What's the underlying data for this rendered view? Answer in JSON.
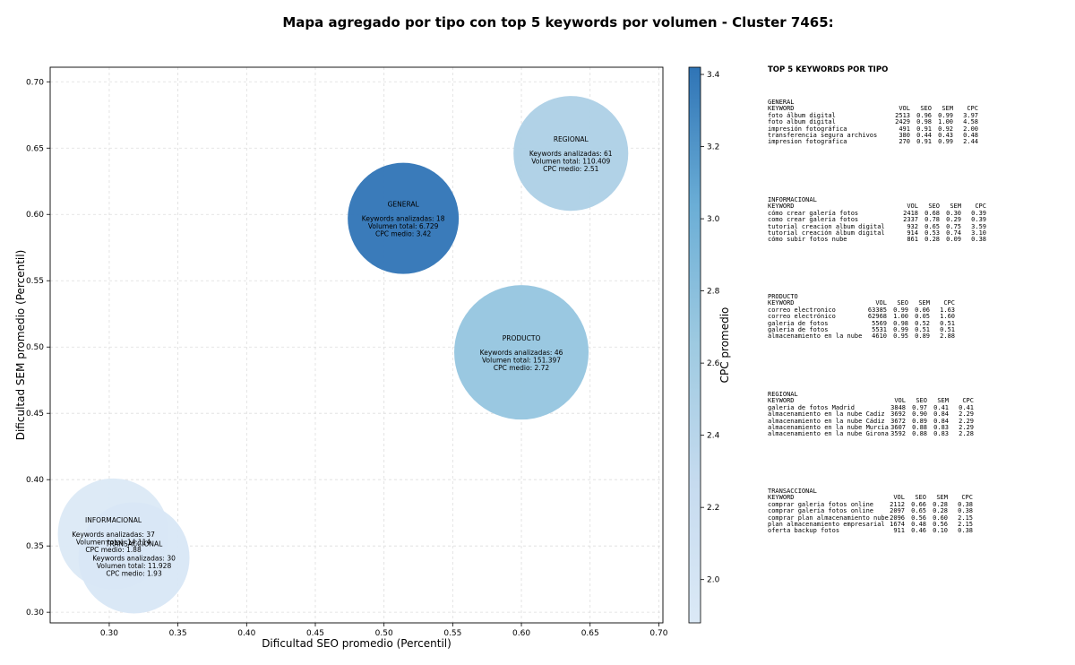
{
  "title": "Mapa agregado por tipo con top 5 keywords por volumen - Cluster 7465:",
  "chart_data": {
    "type": "scatter",
    "xlabel": "Dificultad SEO promedio (Percentil)",
    "ylabel": "Dificultad SEM promedio (Percentil)",
    "xlim": [
      0.257,
      0.703
    ],
    "ylim": [
      0.292,
      0.711
    ],
    "xticks": [
      "0.30",
      "0.35",
      "0.40",
      "0.45",
      "0.50",
      "0.55",
      "0.60",
      "0.65",
      "0.70"
    ],
    "yticks": [
      "0.30",
      "0.35",
      "0.40",
      "0.45",
      "0.50",
      "0.55",
      "0.60",
      "0.65",
      "0.70"
    ],
    "grid": true,
    "colorbar": {
      "label": "CPC promedio",
      "range": [
        1.88,
        3.42
      ],
      "ticks": [
        "2.0",
        "2.2",
        "2.4",
        "2.6",
        "2.8",
        "3.0",
        "3.2",
        "3.4"
      ],
      "colormap": "Blues"
    },
    "points": [
      {
        "name": "GENERAL",
        "x": 0.514,
        "y": 0.597,
        "keywords": 18,
        "volume": 6729,
        "cpc": 3.42,
        "lines": [
          "Keywords analizadas: 18",
          "Volumen total: 6.729",
          "CPC medio: 3.42"
        ]
      },
      {
        "name": "REGIONAL",
        "x": 0.636,
        "y": 0.646,
        "keywords": 61,
        "volume": 110409,
        "cpc": 2.51,
        "lines": [
          "Keywords analizadas: 61",
          "Volumen total: 110.409",
          "CPC medio: 2.51"
        ]
      },
      {
        "name": "PRODUCTO",
        "x": 0.6,
        "y": 0.496,
        "keywords": 46,
        "volume": 151397,
        "cpc": 2.72,
        "lines": [
          "Keywords analizadas: 46",
          "Volumen total: 151.397",
          "CPC medio: 2.72"
        ]
      },
      {
        "name": "INFORMACIONAL",
        "x": 0.303,
        "y": 0.359,
        "keywords": 37,
        "volume": 14114,
        "cpc": 1.88,
        "lines": [
          "Keywords analizadas: 37",
          "Volumen total: 14.114",
          "CPC medio: 1.88"
        ]
      },
      {
        "name": "TRANSACCIONAL",
        "x": 0.318,
        "y": 0.341,
        "keywords": 30,
        "volume": 11928,
        "cpc": 1.93,
        "lines": [
          "Keywords analizadas: 30",
          "Volumen total: 11.928",
          "CPC medio: 1.93"
        ]
      }
    ]
  },
  "side_panel": {
    "title": "TOP 5 KEYWORDS POR TIPO",
    "groups": [
      {
        "name": "GENERAL",
        "header": [
          "KEYWORD",
          "VOL",
          "SEO",
          "SEM",
          "CPC"
        ],
        "rows": [
          [
            "foto álbum digital",
            "2513",
            "0.96",
            "0.99",
            "3.97"
          ],
          [
            "foto album digital",
            "2429",
            "0.98",
            "1.00",
            "4.58"
          ],
          [
            "impresión fotográfica",
            "491",
            "0.91",
            "0.92",
            "2.00"
          ],
          [
            "transferencia segura archivos",
            "380",
            "0.44",
            "0.43",
            "0.48"
          ],
          [
            "impresion fotografica",
            "270",
            "0.91",
            "0.99",
            "2.44"
          ]
        ]
      },
      {
        "name": "INFORMACIONAL",
        "header": [
          "KEYWORD",
          "VOL",
          "SEO",
          "SEM",
          "CPC"
        ],
        "rows": [
          [
            "cómo crear galería fotos",
            "2418",
            "0.68",
            "0.30",
            "0.39"
          ],
          [
            "como crear galeria fotos",
            "2337",
            "0.78",
            "0.29",
            "0.39"
          ],
          [
            "tutorial creacion album digital",
            "932",
            "0.65",
            "0.75",
            "3.59"
          ],
          [
            "tutorial creación álbum digital",
            "914",
            "0.53",
            "0.74",
            "3.10"
          ],
          [
            "cómo subir fotos nube",
            "861",
            "0.28",
            "0.09",
            "0.38"
          ]
        ]
      },
      {
        "name": "PRODUCTO",
        "header": [
          "KEYWORD",
          "VOL",
          "SEO",
          "SEM",
          "CPC"
        ],
        "rows": [
          [
            "correo electronico",
            "63385",
            "0.99",
            "0.06",
            "1.63"
          ],
          [
            "correo electrónico",
            "62968",
            "1.00",
            "0.05",
            "1.60"
          ],
          [
            "galeria de fotos",
            "5569",
            "0.98",
            "0.52",
            "0.51"
          ],
          [
            "galería de fotos",
            "5531",
            "0.99",
            "0.51",
            "0.51"
          ],
          [
            "almacenamiento en la nube",
            "4610",
            "0.95",
            "0.89",
            "2.88"
          ]
        ]
      },
      {
        "name": "REGIONAL",
        "header": [
          "KEYWORD",
          "VOL",
          "SEO",
          "SEM",
          "CPC"
        ],
        "rows": [
          [
            "galeria de fotos Madrid",
            "3848",
            "0.97",
            "0.41",
            "0.41"
          ],
          [
            "almacenamiento en la nube Cadiz",
            "3692",
            "0.90",
            "0.84",
            "2.29"
          ],
          [
            "almacenamiento en la nube Cádiz",
            "3672",
            "0.89",
            "0.84",
            "2.29"
          ],
          [
            "almacenamiento en la nube Murcia",
            "3607",
            "0.88",
            "0.83",
            "2.29"
          ],
          [
            "almacenamiento en la nube Girona",
            "3592",
            "0.88",
            "0.83",
            "2.28"
          ]
        ]
      },
      {
        "name": "TRANSACCIONAL",
        "header": [
          "KEYWORD",
          "VOL",
          "SEO",
          "SEM",
          "CPC"
        ],
        "rows": [
          [
            "comprar galeria fotos online",
            "2112",
            "0.66",
            "0.28",
            "0.38"
          ],
          [
            "comprar galería fotos online",
            "2097",
            "0.65",
            "0.28",
            "0.38"
          ],
          [
            "comprar plan almacenamiento nube",
            "2096",
            "0.56",
            "0.60",
            "2.15"
          ],
          [
            "plan almacenamiento empresarial",
            "1674",
            "0.48",
            "0.56",
            "2.15"
          ],
          [
            "oferta backup fotos",
            "911",
            "0.46",
            "0.10",
            "0.38"
          ]
        ]
      }
    ]
  }
}
